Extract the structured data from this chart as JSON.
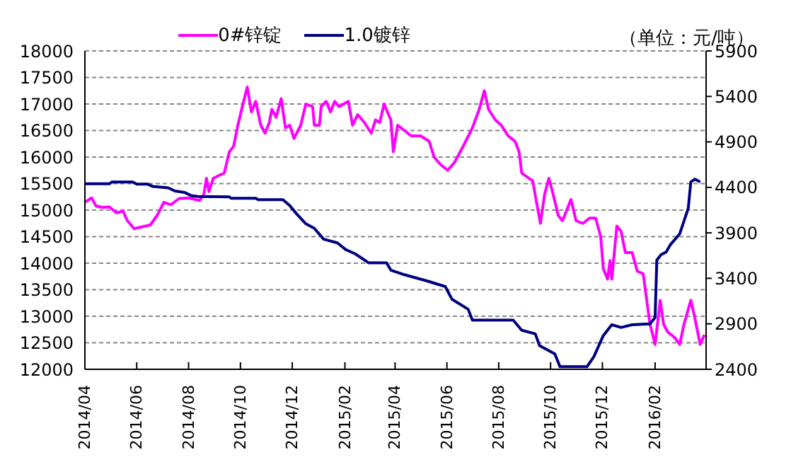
{
  "chart_data": {
    "type": "line",
    "legend": "top",
    "grid": "y",
    "line_style": "solid",
    "marker": "none",
    "annotations": [
      "（单位：元/吨）"
    ],
    "xlim": [
      "2014-04-01",
      "2016-04-01"
    ],
    "xticks": [
      {
        "value": "2014-04",
        "label": "2014/04"
      },
      {
        "value": "2014-06",
        "label": "2014/06"
      },
      {
        "value": "2014-08",
        "label": "2014/08"
      },
      {
        "value": "2014-10",
        "label": "2014/10"
      },
      {
        "value": "2014-12",
        "label": "2014/12"
      },
      {
        "value": "2015-02",
        "label": "2015/02"
      },
      {
        "value": "2015-04",
        "label": "2015/04"
      },
      {
        "value": "2015-06",
        "label": "2015/06"
      },
      {
        "value": "2015-08",
        "label": "2015/08"
      },
      {
        "value": "2015-10",
        "label": "2015/10"
      },
      {
        "value": "2015-12",
        "label": "2015/12"
      },
      {
        "value": "2016-02",
        "label": "2016/02"
      }
    ],
    "ylim": [
      12000,
      18000
    ],
    "yticks": [
      12000,
      12500,
      13000,
      13500,
      14000,
      14500,
      15000,
      15500,
      16000,
      16500,
      17000,
      17500,
      18000
    ],
    "y2lim": [
      2400,
      5900
    ],
    "y2ticks": [
      2400,
      2900,
      3400,
      3900,
      4400,
      4900,
      5400,
      5900
    ],
    "series": [
      {
        "name": "0#锌锭",
        "color": "#ff00ff",
        "axis": "y",
        "x": [
          "2014-04-01",
          "2014-04-09",
          "2014-04-14",
          "2014-04-22",
          "2014-04-30",
          "2014-05-08",
          "2014-05-16",
          "2014-05-21",
          "2014-05-29",
          "2014-06-06",
          "2014-06-17",
          "2014-06-25",
          "2014-07-03",
          "2014-07-11",
          "2014-07-21",
          "2014-08-01",
          "2014-08-14",
          "2014-08-19",
          "2014-08-22",
          "2014-08-25",
          "2014-08-30",
          "2014-09-12",
          "2014-09-18",
          "2014-09-23",
          "2014-09-28",
          "2014-10-04",
          "2014-10-09",
          "2014-10-14",
          "2014-10-19",
          "2014-10-25",
          "2014-10-30",
          "2014-11-04",
          "2014-11-07",
          "2014-11-12",
          "2014-11-18",
          "2014-11-23",
          "2014-11-28",
          "2014-12-03",
          "2014-12-11",
          "2014-12-17",
          "2014-12-25",
          "2014-12-27",
          "2015-01-02",
          "2015-01-04",
          "2015-01-10",
          "2015-01-15",
          "2015-01-20",
          "2015-01-25",
          "2015-02-05",
          "2015-02-10",
          "2015-02-16",
          "2015-02-24",
          "2015-03-04",
          "2015-03-09",
          "2015-03-14",
          "2015-03-19",
          "2015-03-27",
          "2015-03-30",
          "2015-04-04",
          "2015-04-12",
          "2015-04-20",
          "2015-05-01",
          "2015-05-11",
          "2015-05-17",
          "2015-05-25",
          "2015-06-02",
          "2015-06-10",
          "2015-06-20",
          "2015-07-01",
          "2015-07-09",
          "2015-07-15",
          "2015-07-20",
          "2015-07-28",
          "2015-08-04",
          "2015-08-12",
          "2015-08-20",
          "2015-08-25",
          "2015-08-28",
          "2015-09-10",
          "2015-09-15",
          "2015-09-19",
          "2015-09-24",
          "2015-09-29",
          "2015-10-04",
          "2015-10-10",
          "2015-10-15",
          "2015-10-25",
          "2015-10-31",
          "2015-11-08",
          "2015-11-16",
          "2015-11-23",
          "2015-11-29",
          "2015-12-02",
          "2015-12-07",
          "2015-12-10",
          "2015-12-12",
          "2015-12-18",
          "2015-12-23",
          "2015-12-28",
          "2016-01-05",
          "2016-01-11",
          "2016-01-18",
          "2016-01-23",
          "2016-01-26",
          "2016-02-01",
          "2016-02-07",
          "2016-02-11",
          "2016-02-16",
          "2016-02-24",
          "2016-03-01",
          "2016-03-06",
          "2016-03-14",
          "2016-03-19",
          "2016-03-25",
          "2016-03-30"
        ],
        "values": [
          15150,
          15230,
          15080,
          15050,
          15060,
          14950,
          14980,
          14800,
          14650,
          14680,
          14720,
          14900,
          15150,
          15100,
          15220,
          15230,
          15180,
          15300,
          15600,
          15350,
          15600,
          15700,
          16100,
          16200,
          16600,
          17000,
          17320,
          16850,
          17050,
          16600,
          16450,
          16650,
          16900,
          16750,
          17100,
          16550,
          16600,
          16350,
          16600,
          17000,
          16950,
          16600,
          16600,
          16950,
          17050,
          16850,
          17050,
          16950,
          17050,
          16600,
          16800,
          16650,
          16450,
          16700,
          16650,
          17000,
          16700,
          16100,
          16600,
          16500,
          16400,
          16400,
          16300,
          16000,
          15850,
          15750,
          15900,
          16200,
          16550,
          16900,
          17250,
          16900,
          16700,
          16600,
          16400,
          16300,
          16100,
          15700,
          15550,
          15100,
          14750,
          15300,
          15600,
          15300,
          14900,
          14800,
          15200,
          14800,
          14750,
          14850,
          14850,
          14500,
          13900,
          13700,
          14050,
          13700,
          14700,
          14600,
          14200,
          14200,
          13850,
          13800,
          13200,
          12850,
          12470,
          13300,
          12850,
          12700,
          12600,
          12470,
          12850,
          13300,
          12950,
          12470,
          12650
        ]
      },
      {
        "name": "1.0镀锌",
        "color": "#000080",
        "axis": "y2",
        "x": [
          "2014-04-01",
          "2014-04-30",
          "2014-05-03",
          "2014-05-27",
          "2014-06-01",
          "2014-06-14",
          "2014-06-20",
          "2014-07-08",
          "2014-07-16",
          "2014-07-27",
          "2014-08-04",
          "2014-08-12",
          "2014-09-18",
          "2014-09-20",
          "2014-10-19",
          "2014-10-22",
          "2014-11-20",
          "2014-11-28",
          "2014-12-06",
          "2014-12-17",
          "2014-12-27",
          "2015-01-07",
          "2015-01-23",
          "2015-02-02",
          "2015-02-13",
          "2015-03-01",
          "2015-03-22",
          "2015-03-27",
          "2015-04-12",
          "2015-05-09",
          "2015-05-30",
          "2015-06-07",
          "2015-06-26",
          "2015-07-01",
          "2015-08-18",
          "2015-08-28",
          "2015-09-13",
          "2015-09-18",
          "2015-10-06",
          "2015-10-12",
          "2015-11-13",
          "2015-11-21",
          "2015-12-02",
          "2015-12-12",
          "2015-12-23",
          "2016-01-05",
          "2016-01-26",
          "2016-02-01",
          "2016-02-03",
          "2016-02-08",
          "2016-02-14",
          "2016-02-19",
          "2016-03-01",
          "2016-03-11",
          "2016-03-14",
          "2016-03-19",
          "2016-03-25"
        ],
        "values": [
          4440,
          4440,
          4460,
          4460,
          4435,
          4435,
          4410,
          4395,
          4360,
          4345,
          4310,
          4300,
          4295,
          4280,
          4280,
          4265,
          4265,
          4200,
          4110,
          4000,
          3950,
          3830,
          3790,
          3715,
          3670,
          3570,
          3570,
          3490,
          3440,
          3370,
          3310,
          3170,
          3060,
          2940,
          2940,
          2830,
          2790,
          2660,
          2570,
          2430,
          2430,
          2540,
          2770,
          2890,
          2860,
          2890,
          2900,
          2970,
          3600,
          3660,
          3690,
          3770,
          3890,
          4170,
          4460,
          4490,
          4460
        ]
      }
    ]
  }
}
